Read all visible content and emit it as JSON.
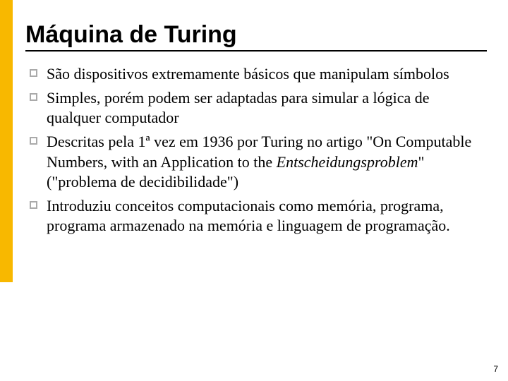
{
  "accent_color": "#f8b800",
  "title": "Máquina de Turing",
  "bullets": [
    {
      "pre": "São dispositivos extremamente básicos que manipulam símbolos",
      "italic": "",
      "post": ""
    },
    {
      "pre": "Simples, porém podem ser adaptadas para simular a lógica de qualquer computador",
      "italic": "",
      "post": ""
    },
    {
      "pre": "Descritas pela 1ª vez em 1936 por Turing no artigo \"On Computable Numbers, with an Application to the ",
      "italic": "Entscheidungsproblem",
      "post": "\" (\"problema de decidibilidade\")"
    },
    {
      "pre": "Introduziu conceitos computacionais como memória, programa, programa armazenado na memória e linguagem de programação.",
      "italic": "",
      "post": ""
    }
  ],
  "page_number": "7"
}
